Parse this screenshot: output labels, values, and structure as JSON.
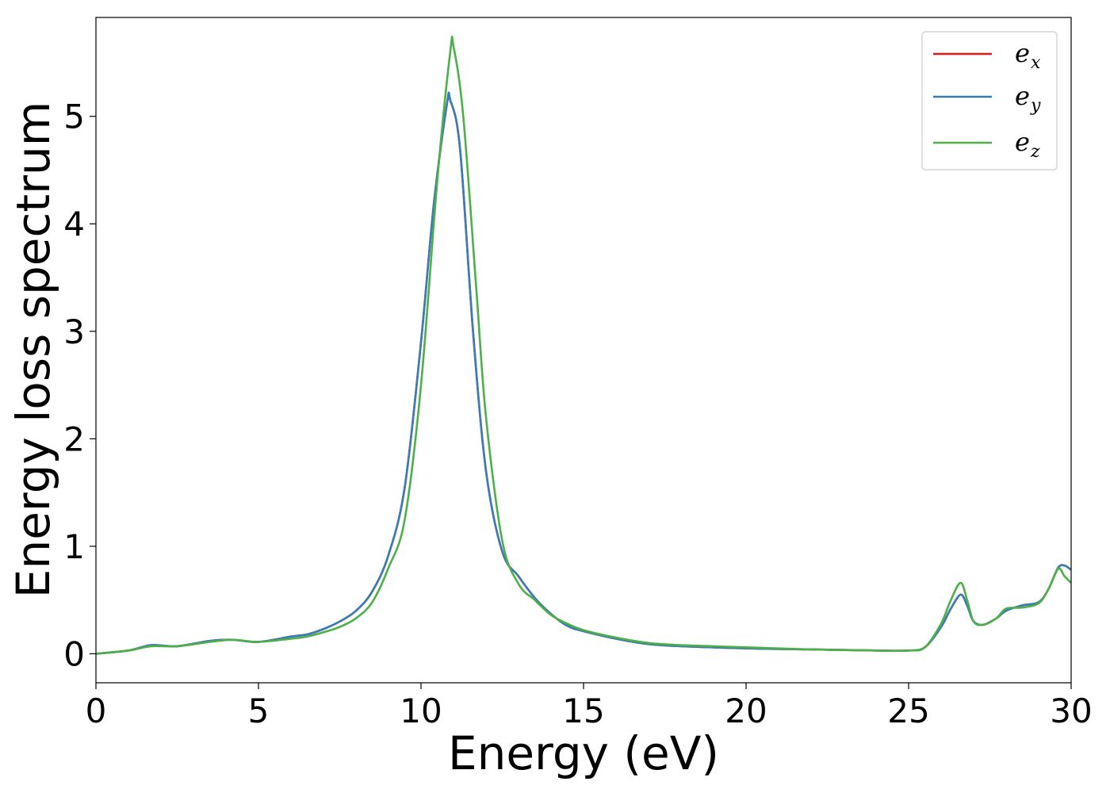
{
  "chart_data": {
    "type": "line",
    "title": "",
    "xlabel": "Energy (eV)",
    "ylabel": "Energy loss spectrum",
    "xlim": [
      0,
      30
    ],
    "ylim": [
      -0.27,
      5.92
    ],
    "xticks": [
      0,
      5,
      10,
      15,
      20,
      25,
      30
    ],
    "yticks": [
      0,
      1,
      2,
      3,
      4,
      5
    ],
    "grid": false,
    "legend_position": "top-right",
    "series": [
      {
        "name": "e_x",
        "legend_base": "e",
        "legend_sub": "x",
        "color": "#e41a1c",
        "x": [
          0,
          1,
          1.7,
          2.5,
          3.5,
          4.2,
          5,
          6,
          6.5,
          7,
          7.5,
          8,
          8.5,
          9,
          9.5,
          10,
          10.4,
          10.8,
          10.9,
          11.2,
          11.6,
          12,
          12.5,
          13,
          13.5,
          14,
          14.5,
          15,
          16,
          17,
          18,
          20,
          22,
          24,
          25,
          25.5,
          26,
          26.3,
          26.6,
          26.8,
          27,
          27.3,
          27.7,
          28,
          28.5,
          29,
          29.3,
          29.6,
          29.8,
          30
        ],
        "y": [
          0,
          0.03,
          0.08,
          0.07,
          0.12,
          0.13,
          0.11,
          0.16,
          0.18,
          0.23,
          0.3,
          0.4,
          0.58,
          0.92,
          1.55,
          2.9,
          4.2,
          5.12,
          5.15,
          4.7,
          3.0,
          1.7,
          0.95,
          0.72,
          0.52,
          0.37,
          0.26,
          0.21,
          0.14,
          0.09,
          0.07,
          0.05,
          0.04,
          0.03,
          0.03,
          0.06,
          0.25,
          0.42,
          0.55,
          0.45,
          0.3,
          0.27,
          0.33,
          0.4,
          0.45,
          0.48,
          0.6,
          0.8,
          0.82,
          0.78
        ]
      },
      {
        "name": "e_y",
        "legend_base": "e",
        "legend_sub": "y",
        "color": "#377eb8",
        "x": [
          0,
          1,
          1.7,
          2.5,
          3.5,
          4.2,
          5,
          6,
          6.5,
          7,
          7.5,
          8,
          8.5,
          9,
          9.5,
          10,
          10.4,
          10.8,
          10.9,
          11.2,
          11.6,
          12,
          12.5,
          13,
          13.5,
          14,
          14.5,
          15,
          16,
          17,
          18,
          20,
          22,
          24,
          25,
          25.5,
          26,
          26.3,
          26.6,
          26.8,
          27,
          27.3,
          27.7,
          28,
          28.5,
          29,
          29.3,
          29.6,
          29.8,
          30
        ],
        "y": [
          0,
          0.03,
          0.08,
          0.07,
          0.12,
          0.13,
          0.11,
          0.16,
          0.18,
          0.23,
          0.3,
          0.4,
          0.58,
          0.92,
          1.55,
          2.9,
          4.2,
          5.12,
          5.15,
          4.7,
          3.0,
          1.7,
          0.95,
          0.72,
          0.52,
          0.37,
          0.26,
          0.21,
          0.14,
          0.09,
          0.07,
          0.05,
          0.04,
          0.03,
          0.03,
          0.06,
          0.25,
          0.42,
          0.55,
          0.45,
          0.3,
          0.27,
          0.33,
          0.4,
          0.45,
          0.48,
          0.6,
          0.8,
          0.82,
          0.78
        ]
      },
      {
        "name": "e_z",
        "legend_base": "e",
        "legend_sub": "z",
        "color": "#4daf4a",
        "x": [
          0,
          1,
          1.7,
          2.5,
          3.5,
          4.2,
          5,
          6,
          6.5,
          7,
          7.5,
          8,
          8.5,
          9,
          9.5,
          10,
          10.5,
          10.9,
          11.0,
          11.3,
          11.7,
          12,
          12.5,
          13,
          13.5,
          14,
          14.5,
          15,
          16,
          17,
          18,
          20,
          22,
          24,
          25,
          25.5,
          26,
          26.3,
          26.6,
          26.8,
          27,
          27.3,
          27.7,
          28,
          28.5,
          29,
          29.3,
          29.6,
          29.8,
          30
        ],
        "y": [
          0,
          0.03,
          0.07,
          0.07,
          0.11,
          0.13,
          0.11,
          0.14,
          0.16,
          0.2,
          0.25,
          0.33,
          0.48,
          0.8,
          1.25,
          2.5,
          4.4,
          5.6,
          5.65,
          5.0,
          3.4,
          2.2,
          1.05,
          0.65,
          0.5,
          0.36,
          0.28,
          0.22,
          0.15,
          0.1,
          0.08,
          0.06,
          0.04,
          0.03,
          0.03,
          0.06,
          0.28,
          0.5,
          0.66,
          0.5,
          0.3,
          0.27,
          0.33,
          0.42,
          0.43,
          0.47,
          0.6,
          0.79,
          0.72,
          0.66
        ]
      }
    ]
  }
}
